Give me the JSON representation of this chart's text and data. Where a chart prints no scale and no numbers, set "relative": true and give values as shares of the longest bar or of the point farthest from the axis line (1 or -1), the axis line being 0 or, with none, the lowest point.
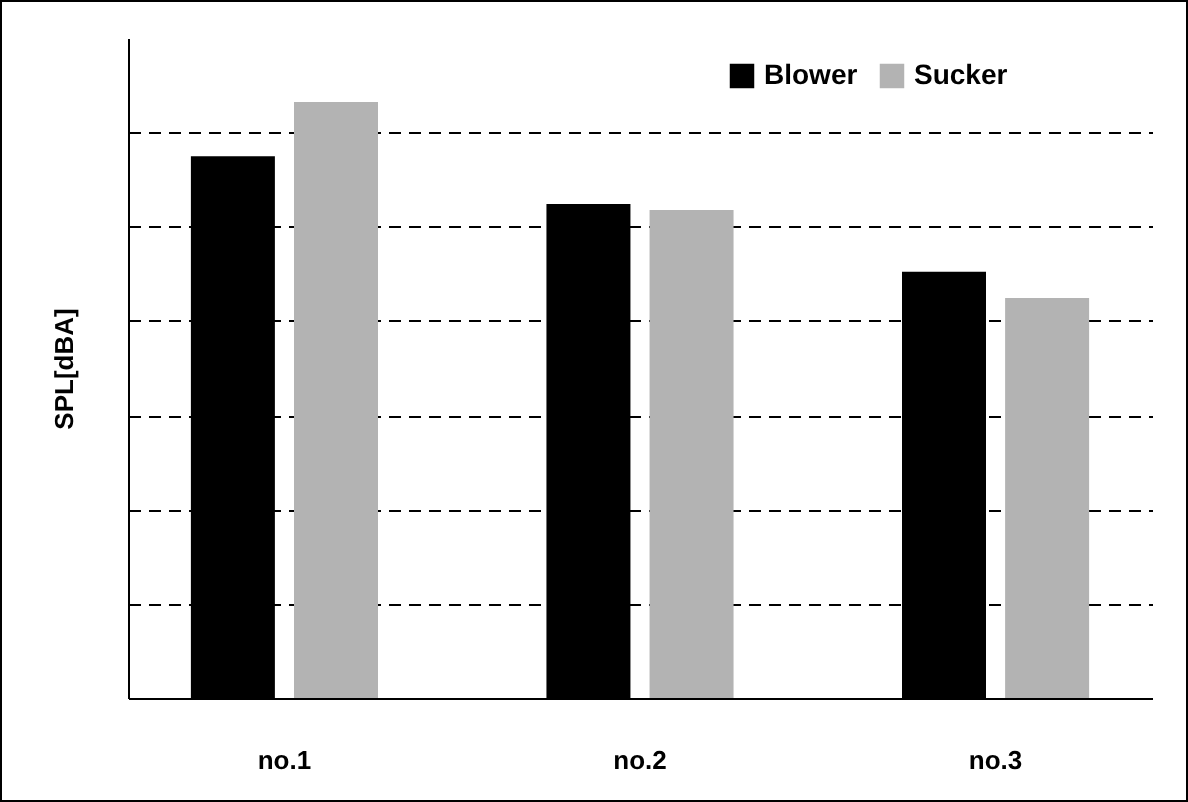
{
  "chart_data": {
    "type": "bar",
    "ylabel": "SPL[dBA]",
    "categories": [
      "no.1",
      "no.2",
      "no.3"
    ],
    "relative": true,
    "grid": "y",
    "legend": "top right",
    "series": [
      {
        "name": "Blower",
        "color": "#000000",
        "values": [
          0.909,
          0.829,
          0.715
        ]
      },
      {
        "name": "Sucker",
        "color": "#b3b3b3",
        "values": [
          1,
          0.819,
          0.671
        ]
      }
    ]
  }
}
